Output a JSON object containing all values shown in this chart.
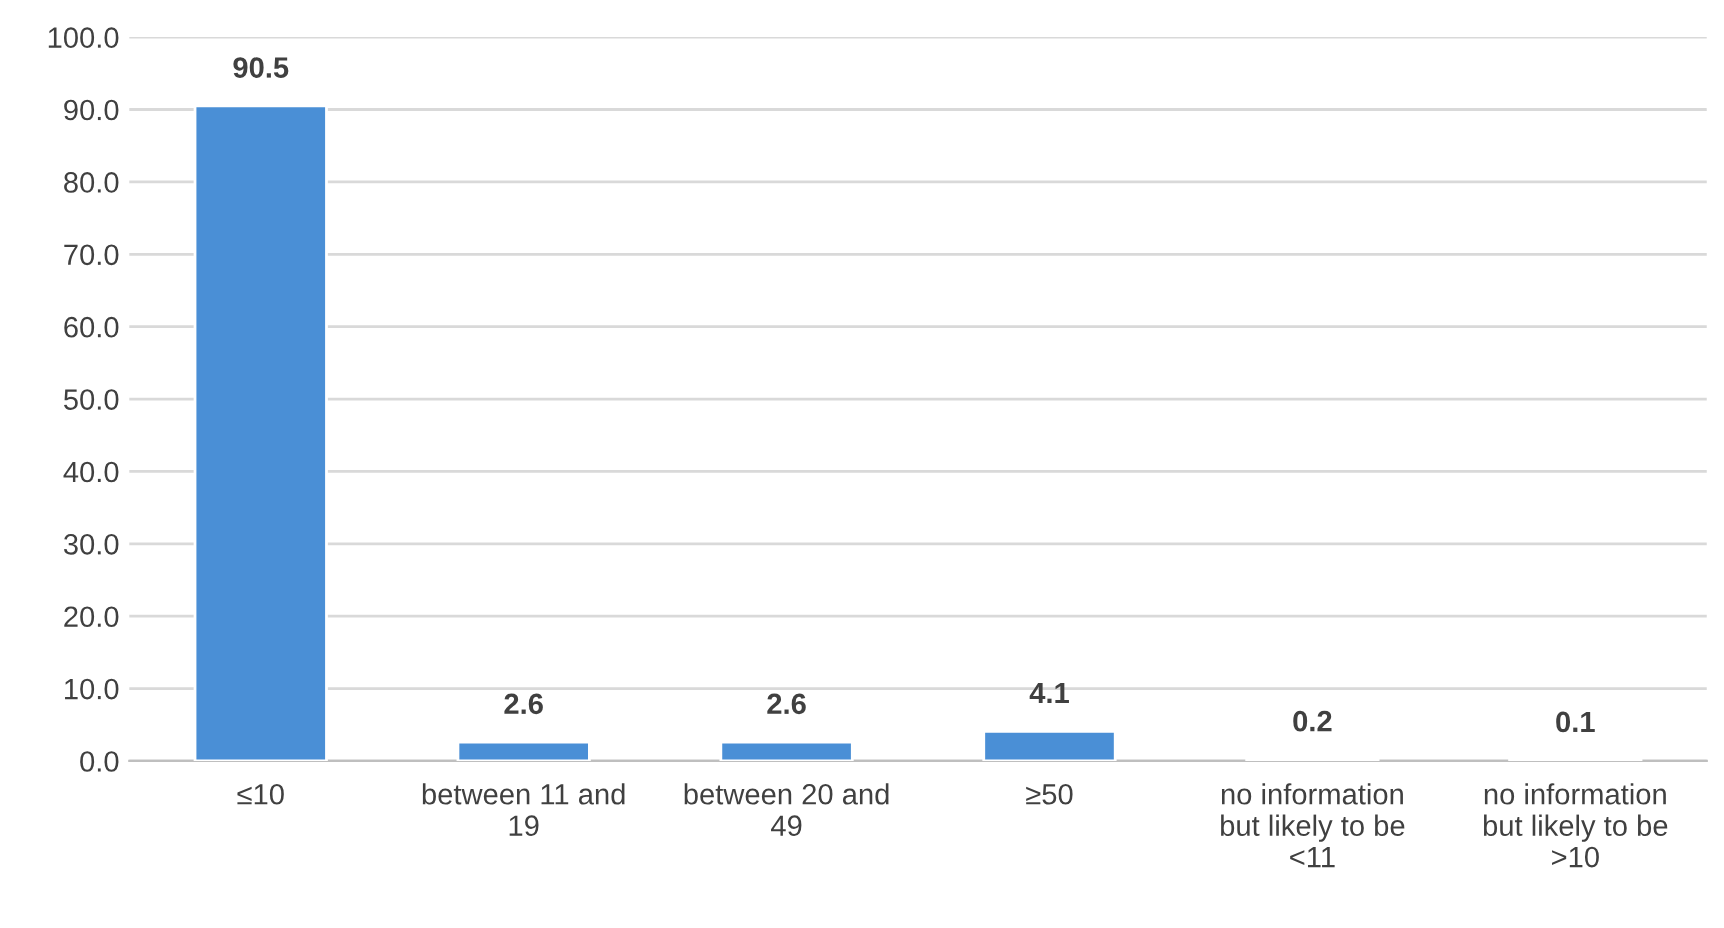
{
  "chart_data": {
    "type": "bar",
    "categories": [
      "≤10",
      "between 11 and\n19",
      "between 20 and\n49",
      "≥50",
      "no information\nbut likely to be\n<11",
      "no information\nbut likely to be\n>10"
    ],
    "values": [
      90.5,
      2.6,
      2.6,
      4.1,
      0.2,
      0.1
    ],
    "color": "#4a8fd6",
    "ylim": [
      0,
      100
    ],
    "yticks": [
      {
        "value": 0,
        "label": "0.0"
      },
      {
        "value": 10,
        "label": "10.0"
      },
      {
        "value": 20,
        "label": "20.0"
      },
      {
        "value": 30,
        "label": "30.0"
      },
      {
        "value": 40,
        "label": "40.0"
      },
      {
        "value": 50,
        "label": "50.0"
      },
      {
        "value": 60,
        "label": "60.0"
      },
      {
        "value": 70,
        "label": "70.0"
      },
      {
        "value": 80,
        "label": "80.0"
      },
      {
        "value": 90,
        "label": "90.0"
      },
      {
        "value": 100,
        "label": "100.0"
      }
    ],
    "grid": "y",
    "data_labels": true
  }
}
